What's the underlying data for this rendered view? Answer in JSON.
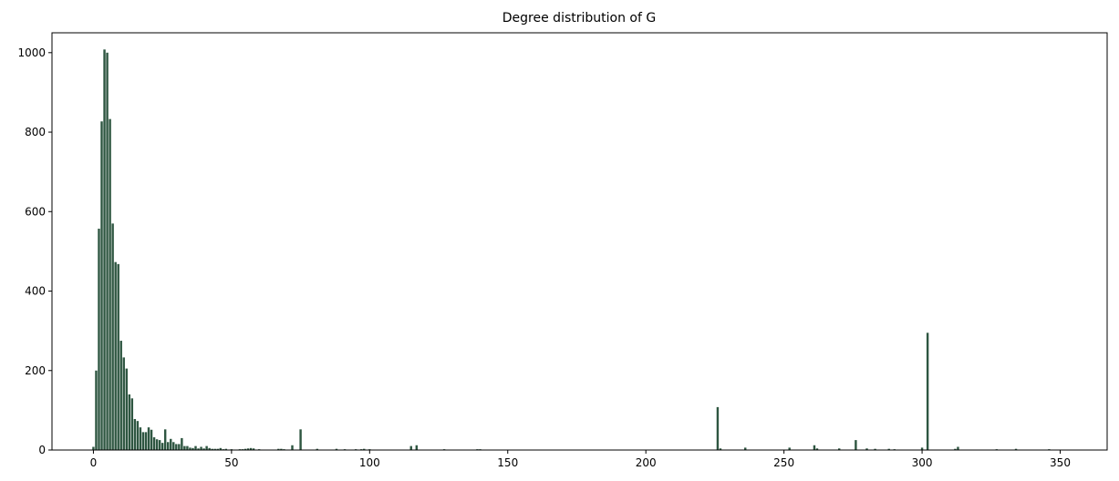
{
  "chart_data": {
    "type": "bar",
    "title": "Degree distribution of G",
    "xlabel": "",
    "ylabel": "",
    "xlim": [
      -15,
      367
    ],
    "ylim": [
      0,
      1050
    ],
    "x_ticks": [
      0,
      50,
      100,
      150,
      200,
      250,
      300,
      350
    ],
    "y_ticks": [
      0,
      200,
      400,
      600,
      800,
      1000
    ],
    "grid": false,
    "bar_color": "#2e5641",
    "x": [
      0,
      1,
      2,
      3,
      4,
      5,
      6,
      7,
      8,
      9,
      10,
      11,
      12,
      13,
      14,
      15,
      16,
      17,
      18,
      19,
      20,
      21,
      22,
      23,
      24,
      25,
      26,
      27,
      28,
      29,
      30,
      31,
      32,
      33,
      34,
      35,
      36,
      37,
      38,
      39,
      40,
      41,
      42,
      43,
      44,
      45,
      46,
      47,
      48,
      50,
      53,
      54,
      55,
      56,
      57,
      58,
      60,
      67,
      68,
      69,
      72,
      75,
      81,
      88,
      91,
      95,
      97,
      98,
      100,
      115,
      117,
      127,
      139,
      140,
      226,
      227,
      236,
      252,
      261,
      262,
      270,
      276,
      280,
      283,
      288,
      290,
      300,
      302,
      312,
      313,
      327,
      334,
      346
    ],
    "values": [
      8,
      200,
      557,
      827,
      1008,
      1000,
      833,
      570,
      473,
      468,
      275,
      233,
      205,
      140,
      130,
      78,
      73,
      57,
      45,
      45,
      57,
      51,
      32,
      27,
      25,
      18,
      52,
      20,
      28,
      20,
      15,
      15,
      30,
      10,
      10,
      6,
      5,
      10,
      4,
      8,
      4,
      10,
      5,
      3,
      3,
      3,
      5,
      2,
      3,
      2,
      2,
      2,
      3,
      4,
      5,
      4,
      2,
      3,
      3,
      2,
      12,
      52,
      3,
      3,
      2,
      2,
      2,
      3,
      2,
      10,
      12,
      2,
      2,
      2,
      108,
      4,
      6,
      6,
      12,
      4,
      4,
      25,
      4,
      3,
      3,
      2,
      6,
      295,
      3,
      8,
      2,
      3,
      2
    ]
  }
}
